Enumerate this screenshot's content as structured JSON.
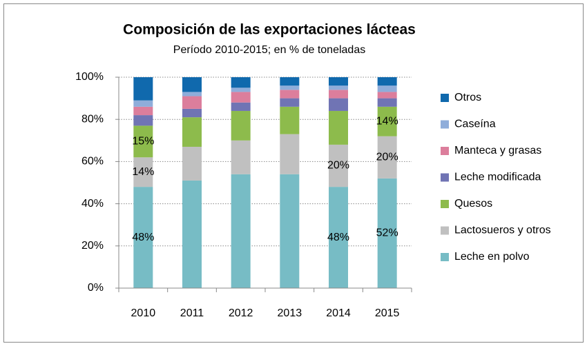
{
  "chart_data": {
    "type": "stacked_bar",
    "title": "Composición de las exportaciones lácteas",
    "subtitle": "Período 2010-2015; en % de toneladas",
    "categories": [
      "2010",
      "2011",
      "2012",
      "2013",
      "2014",
      "2015"
    ],
    "ylim": [
      0,
      100
    ],
    "yticks": [
      {
        "value": 0,
        "label": "0%"
      },
      {
        "value": 20,
        "label": "20%"
      },
      {
        "value": 40,
        "label": "40%"
      },
      {
        "value": 60,
        "label": "60%"
      },
      {
        "value": 80,
        "label": "80%"
      },
      {
        "value": 100,
        "label": "100%"
      }
    ],
    "grid": true,
    "legend": "right",
    "series": [
      {
        "name": "Leche en polvo",
        "color": "#77bcc5",
        "values": [
          48,
          51,
          54,
          54,
          48,
          52
        ],
        "value_labels": [
          "48%",
          null,
          null,
          null,
          "48%",
          "52%"
        ]
      },
      {
        "name": "Lactosueros y otros",
        "color": "#c0c0c0",
        "values": [
          14,
          16,
          16,
          19,
          20,
          20
        ],
        "value_labels": [
          "14%",
          null,
          null,
          null,
          "20%",
          "20%"
        ]
      },
      {
        "name": "Quesos",
        "color": "#8dbb4c",
        "values": [
          15,
          14,
          14,
          13,
          16,
          14
        ],
        "value_labels": [
          "15%",
          null,
          null,
          null,
          null,
          "14%"
        ]
      },
      {
        "name": "Leche modificada",
        "color": "#7074b4",
        "values": [
          5,
          4,
          4,
          4,
          6,
          4
        ]
      },
      {
        "name": "Manteca y grasas",
        "color": "#dc7e9c",
        "values": [
          4,
          6,
          5,
          4,
          4,
          3
        ]
      },
      {
        "name": "Caseína",
        "color": "#8fadda",
        "values": [
          3,
          2,
          2,
          2,
          2,
          3
        ]
      },
      {
        "name": "Otros",
        "color": "#1069ad",
        "values": [
          11,
          7,
          5,
          4,
          4,
          4
        ]
      }
    ]
  }
}
